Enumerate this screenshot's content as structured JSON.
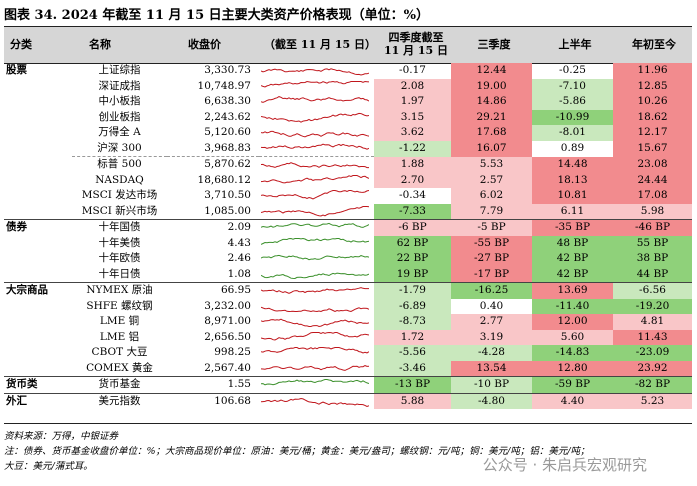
{
  "title": "图表 34. 2024 年截至 11 月 15 日主要大类资产价格表现（单位：%）",
  "headers": {
    "category": "分类",
    "name": "名称",
    "close": "收盘价",
    "trend": "（截至 11 月 15 日）",
    "q4": "四季度截至 11 月 15 日",
    "q3": "三季度",
    "h1": "上半年",
    "ytd": "年初至今"
  },
  "colors": {
    "red_strong": "#f28b8e",
    "red_light": "#f9c6c8",
    "green_strong": "#8fd17a",
    "green_light": "#c9e8bd",
    "header_bg": "#d6d6d6"
  },
  "rows": [
    {
      "cat": "股票",
      "name": "上证综指",
      "close": "3,330.73",
      "q4": "-0.17",
      "q3": "12.44",
      "h1": "-0.25",
      "ytd": "11.96",
      "c": [
        "n",
        "R",
        "n",
        "R"
      ],
      "line": "red"
    },
    {
      "cat": "",
      "name": "深证成指",
      "close": "10,748.97",
      "q4": "2.08",
      "q3": "19.00",
      "h1": "-7.10",
      "ytd": "12.85",
      "c": [
        "r",
        "R",
        "g",
        "R"
      ],
      "line": "red"
    },
    {
      "cat": "",
      "name": "中小板指",
      "close": "6,638.30",
      "q4": "1.97",
      "q3": "14.86",
      "h1": "-5.86",
      "ytd": "10.26",
      "c": [
        "r",
        "R",
        "g",
        "R"
      ],
      "line": "red"
    },
    {
      "cat": "",
      "name": "创业板指",
      "close": "2,243.62",
      "q4": "3.15",
      "q3": "29.21",
      "h1": "-10.99",
      "ytd": "18.62",
      "c": [
        "r",
        "R",
        "G",
        "R"
      ],
      "line": "red"
    },
    {
      "cat": "",
      "name": "万得全 A",
      "close": "5,120.60",
      "q4": "3.62",
      "q3": "17.68",
      "h1": "-8.01",
      "ytd": "12.17",
      "c": [
        "r",
        "R",
        "g",
        "R"
      ],
      "line": "red"
    },
    {
      "cat": "",
      "name": "沪深 300",
      "close": "3,968.83",
      "q4": "-1.22",
      "q3": "16.07",
      "h1": "0.89",
      "ytd": "15.67",
      "c": [
        "g",
        "R",
        "n",
        "R"
      ],
      "line": "red"
    },
    {
      "cat": "",
      "name": "标普 500",
      "close": "5,870.62",
      "q4": "1.88",
      "q3": "5.53",
      "h1": "14.48",
      "ytd": "23.08",
      "c": [
        "r",
        "r",
        "R",
        "R"
      ],
      "line": "red",
      "sub": true
    },
    {
      "cat": "",
      "name": "NASDAQ",
      "close": "18,680.12",
      "q4": "2.70",
      "q3": "2.57",
      "h1": "18.13",
      "ytd": "24.44",
      "c": [
        "r",
        "r",
        "R",
        "R"
      ],
      "line": "red"
    },
    {
      "cat": "",
      "name": "MSCI 发达市场",
      "close": "3,710.50",
      "q4": "-0.34",
      "q3": "6.02",
      "h1": "10.81",
      "ytd": "17.08",
      "c": [
        "n",
        "r",
        "R",
        "R"
      ],
      "line": "red"
    },
    {
      "cat": "",
      "name": "MSCI 新兴市场",
      "close": "1,085.00",
      "q4": "-7.33",
      "q3": "7.79",
      "h1": "6.11",
      "ytd": "5.98",
      "c": [
        "G",
        "r",
        "r",
        "r"
      ],
      "line": "red"
    },
    {
      "cat": "债券",
      "name": "十年国债",
      "close": "2.09",
      "q4": "-6 BP",
      "q3": "-5 BP",
      "h1": "-35 BP",
      "ytd": "-46 BP",
      "c": [
        "r",
        "r",
        "R",
        "R"
      ],
      "line": "green",
      "sep": true
    },
    {
      "cat": "",
      "name": "十年美债",
      "close": "4.43",
      "q4": "62 BP",
      "q3": "-55 BP",
      "h1": "48 BP",
      "ytd": "55 BP",
      "c": [
        "G",
        "R",
        "G",
        "G"
      ],
      "line": "green"
    },
    {
      "cat": "",
      "name": "十年欧债",
      "close": "2.46",
      "q4": "22 BP",
      "q3": "-27 BP",
      "h1": "42 BP",
      "ytd": "38 BP",
      "c": [
        "G",
        "R",
        "G",
        "G"
      ],
      "line": "green"
    },
    {
      "cat": "",
      "name": "十年日债",
      "close": "1.08",
      "q4": "19 BP",
      "q3": "-17 BP",
      "h1": "42 BP",
      "ytd": "44 BP",
      "c": [
        "G",
        "R",
        "G",
        "G"
      ],
      "line": "green"
    },
    {
      "cat": "大宗商品",
      "name": "NYMEX 原油",
      "close": "66.95",
      "q4": "-1.79",
      "q3": "-16.25",
      "h1": "13.69",
      "ytd": "-6.56",
      "c": [
        "g",
        "G",
        "R",
        "g"
      ],
      "line": "red",
      "sep": true
    },
    {
      "cat": "",
      "name": "SHFE 螺纹钢",
      "close": "3,232.00",
      "q4": "-6.89",
      "q3": "0.40",
      "h1": "-11.40",
      "ytd": "-19.20",
      "c": [
        "g",
        "n",
        "G",
        "G"
      ],
      "line": "red"
    },
    {
      "cat": "",
      "name": "LME 铜",
      "close": "8,971.00",
      "q4": "-8.73",
      "q3": "2.77",
      "h1": "12.00",
      "ytd": "4.81",
      "c": [
        "g",
        "r",
        "R",
        "r"
      ],
      "line": "red"
    },
    {
      "cat": "",
      "name": "LME 铝",
      "close": "2,656.50",
      "q4": "1.72",
      "q3": "3.19",
      "h1": "5.60",
      "ytd": "11.43",
      "c": [
        "r",
        "r",
        "r",
        "R"
      ],
      "line": "red"
    },
    {
      "cat": "",
      "name": "CBOT 大豆",
      "close": "998.25",
      "q4": "-5.56",
      "q3": "-4.28",
      "h1": "-14.83",
      "ytd": "-23.09",
      "c": [
        "g",
        "g",
        "G",
        "G"
      ],
      "line": "red"
    },
    {
      "cat": "",
      "name": "COMEX 黄金",
      "close": "2,567.40",
      "q4": "-3.46",
      "q3": "13.54",
      "h1": "12.80",
      "ytd": "23.92",
      "c": [
        "g",
        "R",
        "R",
        "R"
      ],
      "line": "red"
    },
    {
      "cat": "货币类",
      "name": "货币基金",
      "close": "1.55",
      "q4": "-13 BP",
      "q3": "-10 BP",
      "h1": "-59 BP",
      "ytd": "-82 BP",
      "c": [
        "G",
        "g",
        "G",
        "G"
      ],
      "line": "green",
      "sep": true
    },
    {
      "cat": "外汇",
      "name": "美元指数",
      "close": "106.68",
      "q4": "5.88",
      "q3": "-4.80",
      "h1": "4.40",
      "ytd": "5.23",
      "c": [
        "r",
        "g",
        "r",
        "r"
      ],
      "line": "red",
      "sep": true
    }
  ],
  "source": "资料来源：万得，中银证券",
  "note1": "注：债券、货币基金收盘价单位：%；大宗商品现价单位：原油：美元/桶；黄金：美元/盎司；螺纹钢：元/吨；铜：美元/吨；铝：美元/吨；",
  "note2": "大豆：美元/蒲式耳。",
  "watermark": "公众号 · 朱启兵宏观研究"
}
